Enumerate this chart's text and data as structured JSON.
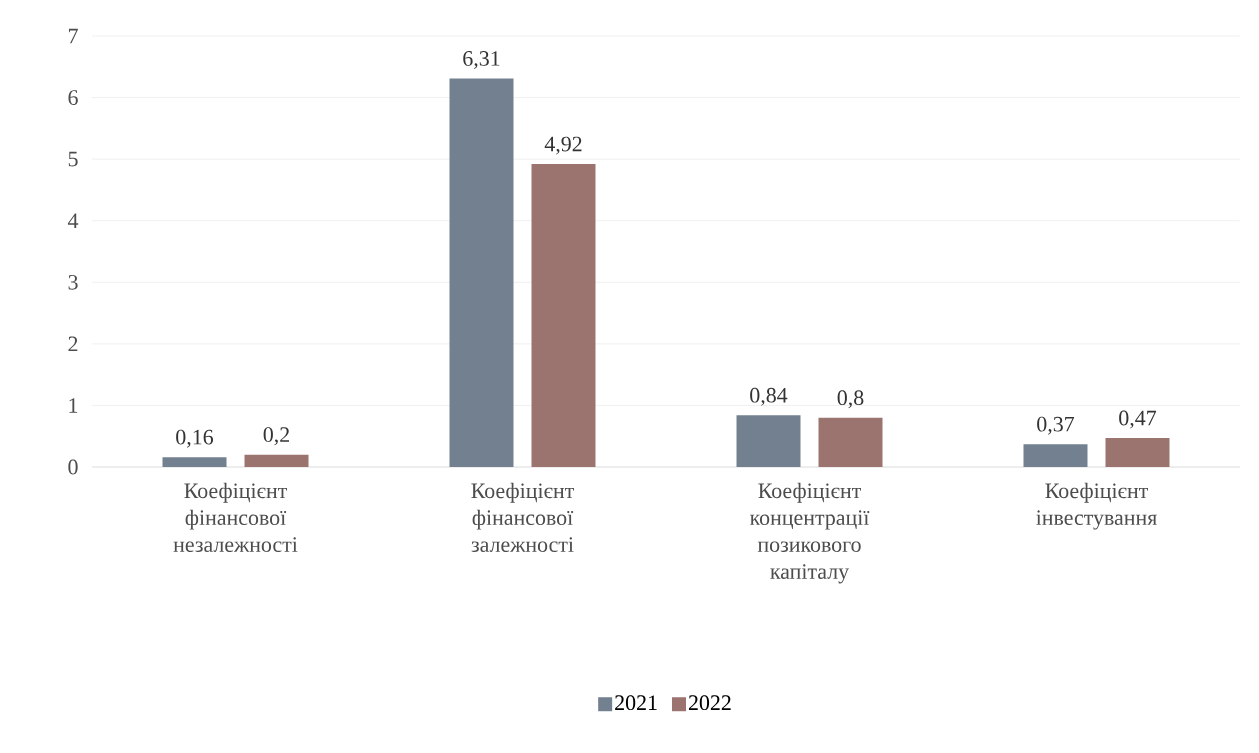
{
  "chart_data": {
    "type": "bar",
    "categories": [
      "Коефіцієнт фінансової незалежності",
      "Коефіцієнт фінансової залежності",
      "Коефіцієнт концентрації позикового капіталу",
      "Коефіцієнт інвестування"
    ],
    "series": [
      {
        "name": "2021",
        "color": "#72808f",
        "values": [
          0.16,
          6.31,
          0.84,
          0.37
        ],
        "value_labels": [
          "0,16",
          "6,31",
          "0,84",
          "0,37"
        ]
      },
      {
        "name": "2022",
        "color": "#9b746f",
        "values": [
          0.2,
          4.92,
          0.8,
          0.47
        ],
        "value_labels": [
          "0,2",
          "4,92",
          "0,8",
          "0,47"
        ]
      }
    ],
    "ylim": [
      0,
      7
    ],
    "yticks": [
      0,
      1,
      2,
      3,
      4,
      5,
      6,
      7
    ],
    "grid": "y",
    "legend": "bottom"
  }
}
